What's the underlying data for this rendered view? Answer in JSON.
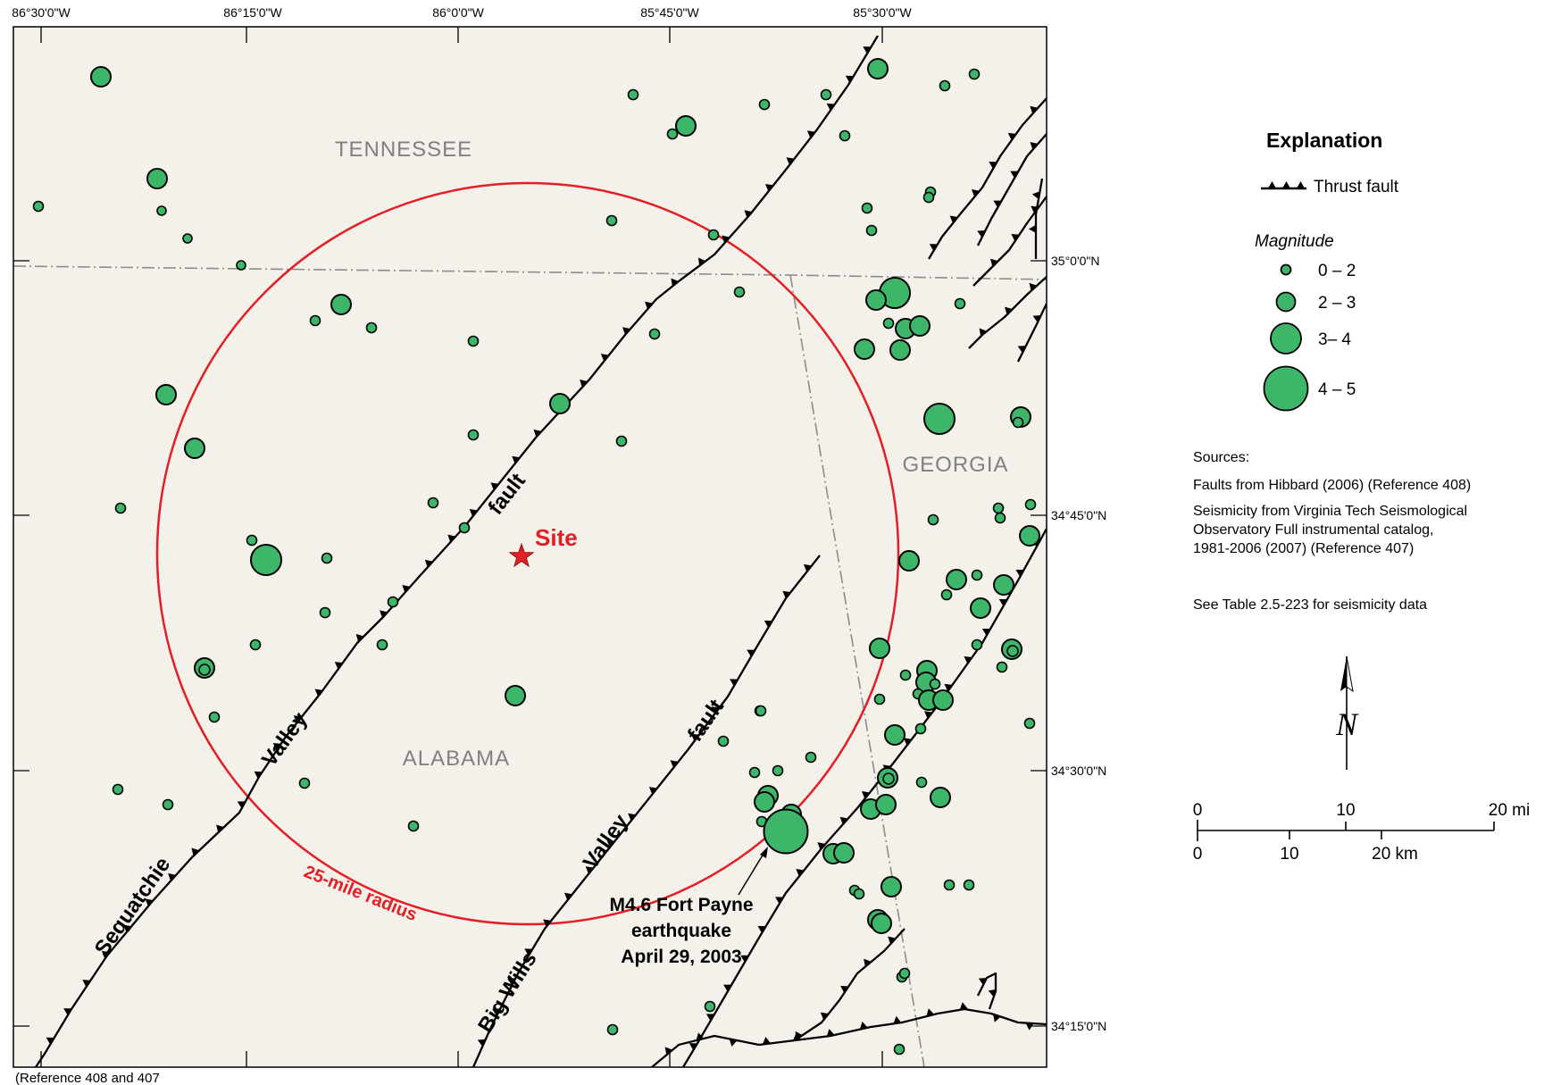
{
  "map": {
    "longitude_labels": [
      "86°30'0\"W",
      "86°15'0\"W",
      "86°0'0\"W",
      "85°45'0\"W",
      "85°30'0\"W"
    ],
    "latitude_labels": [
      "35°0'0\"N",
      "34°45'0\"N",
      "34°30'0\"N",
      "34°15'0\"N"
    ],
    "states": [
      "TENNESSEE",
      "GEORGIA",
      "ALABAMA"
    ],
    "site_label": "Site",
    "radius_label": "25-mile radius",
    "fault_labels": {
      "valley_fault_upper": "fault",
      "valley_upper": "Valley",
      "sequatchie": "Sequatchie",
      "big_wills_valley": "Valley",
      "big_wills_fault": "fault",
      "big_wills": "Big Wills"
    },
    "earthquake_label": [
      "M4.6 Fort Payne",
      "earthquake",
      "April 29, 2003"
    ],
    "reference": "(Reference 408 and 407",
    "colors": {
      "background": "#f3f1ea",
      "event_fill": "#3db66a",
      "radius_circle": "#e31e24",
      "fault": "#000000",
      "state_boundary": "#8c8c8c"
    }
  },
  "legend": {
    "title": "Explanation",
    "thrust_fault_label": "Thrust fault",
    "magnitude_title": "Magnitude",
    "magnitude_classes": [
      "0 – 2",
      "2 – 3",
      "3– 4",
      "4 – 5"
    ],
    "sources_title": "Sources:",
    "sources": [
      "Faults from Hibbard (2006) (Reference 408)",
      "Seismicity from Virginia Tech Seismological",
      "Observatory Full instrumental catalog,",
      "1981-2006 (2007) (Reference 407)"
    ],
    "see_table": "See Table 2.5-223 for seismicity data",
    "north_label": "N",
    "scale_miles": [
      "0",
      "10",
      "20 mi"
    ],
    "scale_km": [
      "0",
      "10",
      "20 km"
    ]
  }
}
